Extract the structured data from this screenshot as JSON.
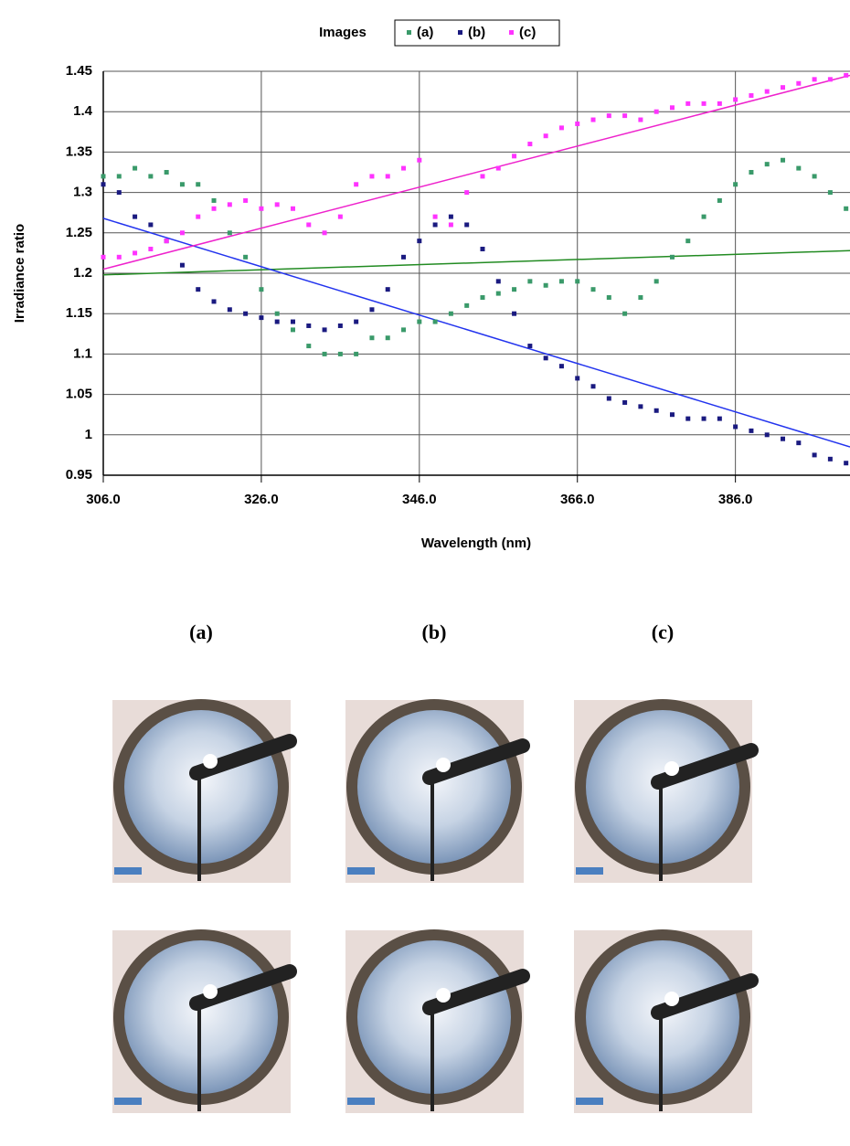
{
  "chart_data": {
    "type": "scatter",
    "legend_title": "Images",
    "legend_position": "top",
    "xlabel": "Wavelength (nm)",
    "ylabel": "Irradiance ratio",
    "xlim": [
      306,
      400.5
    ],
    "ylim": [
      0.95,
      1.45
    ],
    "xticks": [
      {
        "value": 306,
        "label": "306.0"
      },
      {
        "value": 326,
        "label": "326.0"
      },
      {
        "value": 346,
        "label": "346.0"
      },
      {
        "value": 366,
        "label": "366.0"
      },
      {
        "value": 386,
        "label": "386.0"
      }
    ],
    "yticks": [
      0.95,
      1,
      1.05,
      1.1,
      1.15,
      1.2,
      1.25,
      1.3,
      1.35,
      1.4,
      1.45
    ],
    "grid": true,
    "x": [
      306,
      308,
      310,
      312,
      314,
      316,
      318,
      320,
      322,
      324,
      326,
      328,
      330,
      332,
      334,
      336,
      338,
      340,
      342,
      344,
      346,
      348,
      350,
      352,
      354,
      356,
      358,
      360,
      362,
      364,
      366,
      368,
      370,
      372,
      374,
      376,
      378,
      380,
      382,
      384,
      386,
      388,
      390,
      392,
      394,
      396,
      398,
      400
    ],
    "series": [
      {
        "name": "(a)",
        "color": "#3a9a6a",
        "values": [
          1.32,
          1.32,
          1.33,
          1.32,
          1.325,
          1.31,
          1.31,
          1.29,
          1.25,
          1.22,
          1.18,
          1.15,
          1.13,
          1.11,
          1.1,
          1.1,
          1.1,
          1.12,
          1.12,
          1.13,
          1.14,
          1.14,
          1.15,
          1.16,
          1.17,
          1.175,
          1.18,
          1.19,
          1.185,
          1.19,
          1.19,
          1.18,
          1.17,
          1.15,
          1.17,
          1.19,
          1.22,
          1.24,
          1.27,
          1.29,
          1.31,
          1.325,
          1.335,
          1.34,
          1.33,
          1.32,
          1.3,
          1.28
        ]
      },
      {
        "name": "(b)",
        "color": "#1a1a80",
        "values": [
          1.31,
          1.3,
          1.27,
          1.26,
          1.24,
          1.21,
          1.18,
          1.165,
          1.155,
          1.15,
          1.145,
          1.14,
          1.14,
          1.135,
          1.13,
          1.135,
          1.14,
          1.155,
          1.18,
          1.22,
          1.24,
          1.26,
          1.27,
          1.26,
          1.23,
          1.19,
          1.15,
          1.11,
          1.095,
          1.085,
          1.07,
          1.06,
          1.045,
          1.04,
          1.035,
          1.03,
          1.025,
          1.02,
          1.02,
          1.02,
          1.01,
          1.005,
          1.0,
          0.995,
          0.99,
          0.975,
          0.97,
          0.965
        ]
      },
      {
        "name": "(c)",
        "color": "#ff33ff",
        "values": [
          1.22,
          1.22,
          1.225,
          1.23,
          1.24,
          1.25,
          1.27,
          1.28,
          1.285,
          1.29,
          1.28,
          1.285,
          1.28,
          1.26,
          1.25,
          1.27,
          1.31,
          1.32,
          1.32,
          1.33,
          1.34,
          1.27,
          1.26,
          1.3,
          1.32,
          1.33,
          1.345,
          1.36,
          1.37,
          1.38,
          1.385,
          1.39,
          1.395,
          1.395,
          1.39,
          1.4,
          1.405,
          1.41,
          1.41,
          1.41,
          1.415,
          1.42,
          1.425,
          1.43,
          1.435,
          1.44,
          1.44,
          1.445
        ]
      }
    ],
    "trendlines": [
      {
        "color": "#228b22",
        "x": [
          306,
          400.5
        ],
        "values": [
          1.198,
          1.228
        ]
      },
      {
        "color": "#2233ee",
        "x": [
          306,
          400.5
        ],
        "values": [
          1.268,
          0.985
        ]
      },
      {
        "color": "#ee22cc",
        "x": [
          306,
          400.5
        ],
        "values": [
          1.205,
          1.445
        ]
      }
    ]
  },
  "panel_labels": [
    "(a)",
    "(b)",
    "(c)"
  ]
}
